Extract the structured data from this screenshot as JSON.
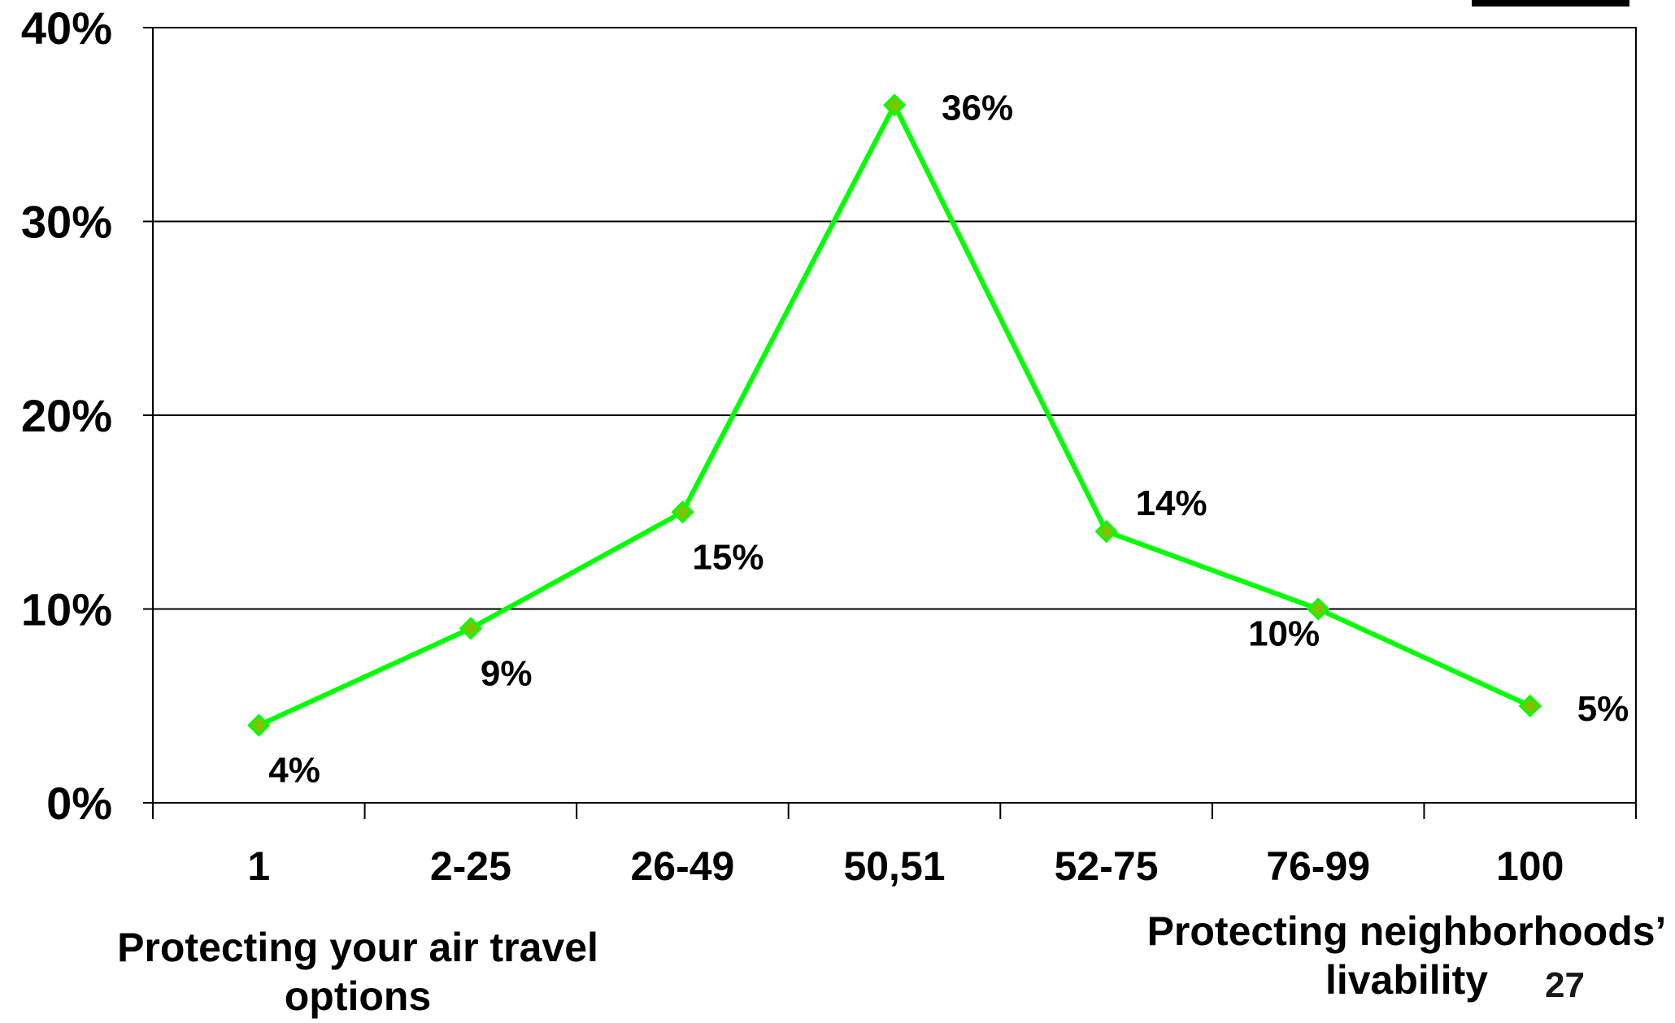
{
  "chart_data": {
    "type": "line",
    "categories": [
      "1",
      "2-25",
      "26-49",
      "50,51",
      "52-75",
      "76-99",
      "100"
    ],
    "series": [
      {
        "values": [
          4,
          9,
          15,
          36,
          14,
          10,
          5
        ],
        "color": "#00ff00",
        "marker": "diamond",
        "marker_color": "#7cc400"
      }
    ],
    "data_labels": [
      "4%",
      "9%",
      "15%",
      "36%",
      "14%",
      "10%",
      "5%"
    ],
    "ylim": [
      0,
      40
    ],
    "yticks": [
      0,
      10,
      20,
      30,
      40
    ],
    "ytick_labels": [
      "0%",
      "10%",
      "20%",
      "30%",
      "40%"
    ],
    "grid": "horizontal",
    "xlabel_left": "Protecting your air travel options",
    "xlabel_right": "Protecting neighborhoods’ livability",
    "page_number": "27"
  }
}
